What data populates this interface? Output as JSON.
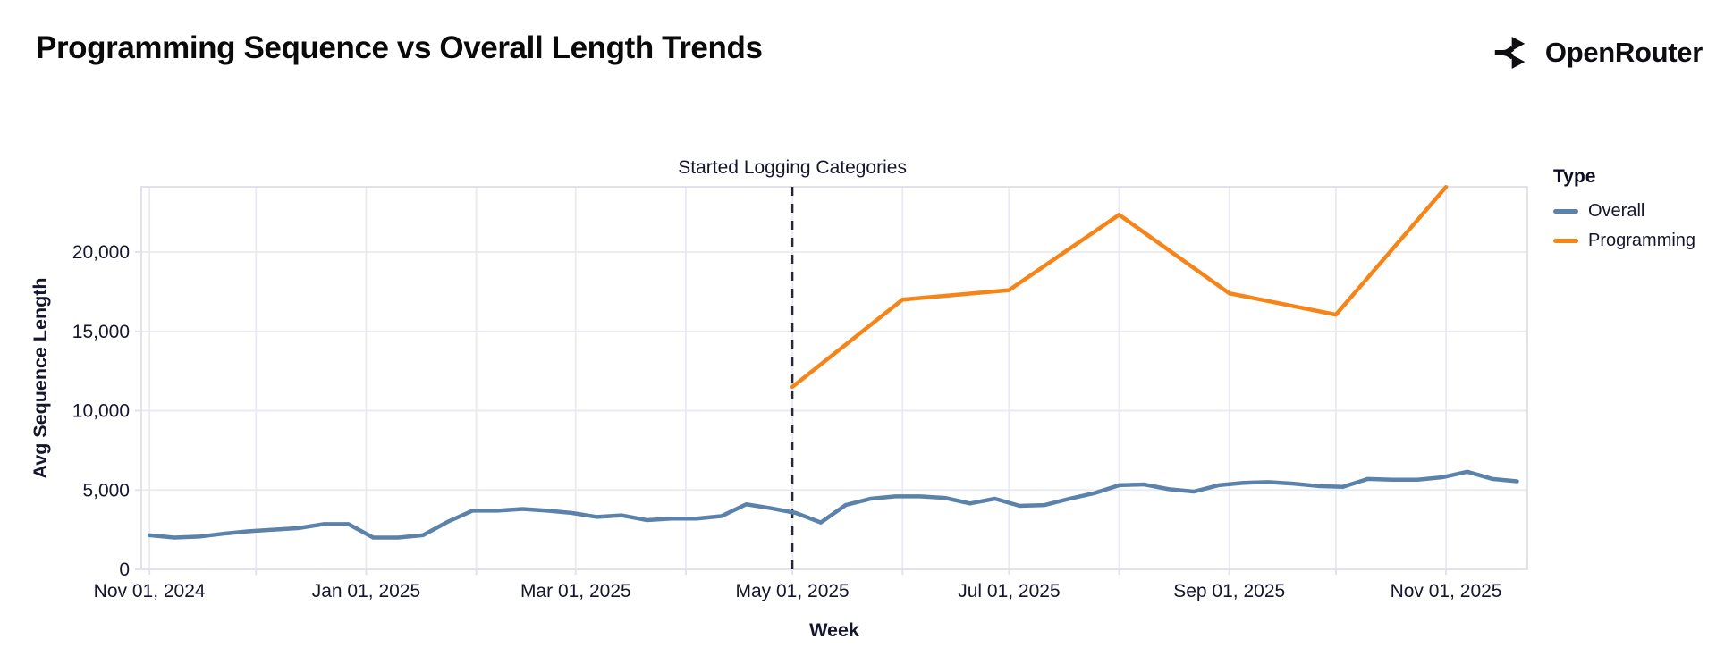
{
  "header": {
    "title": "Programming Sequence vs Overall Length Trends",
    "brand": "OpenRouter"
  },
  "colors": {
    "grid": "#e9e9f1",
    "border": "#e2e2ea",
    "axis_text": "#15152e",
    "annotation_line": "#27273a"
  },
  "chart_data": {
    "type": "line",
    "title": "Programming Sequence vs Overall Length Trends",
    "xlabel": "Week",
    "ylabel": "Avg Sequence Length",
    "x_unit": "days since Nov 01, 2024",
    "x_domain": [
      -2.3,
      387.9
    ],
    "ylim": [
      0,
      24113
    ],
    "grid": true,
    "legend": {
      "title": "Type",
      "position": "right"
    },
    "y_ticks": [
      {
        "value": 0,
        "label": "0"
      },
      {
        "value": 5000,
        "label": "5,000"
      },
      {
        "value": 10000,
        "label": "10,000"
      },
      {
        "value": 15000,
        "label": "15,000"
      },
      {
        "value": 20000,
        "label": "20,000"
      }
    ],
    "x_ticks": [
      {
        "day": 0,
        "label": "Nov 01, 2024"
      },
      {
        "day": 61,
        "label": "Jan 01, 2025"
      },
      {
        "day": 120,
        "label": "Mar 01, 2025"
      },
      {
        "day": 181,
        "label": "May 01, 2025"
      },
      {
        "day": 242,
        "label": "Jul 01, 2025"
      },
      {
        "day": 304,
        "label": "Sep 01, 2025"
      },
      {
        "day": 365,
        "label": "Nov 01, 2025"
      }
    ],
    "month_gridline_days": [
      0,
      30,
      61,
      92,
      120,
      151,
      181,
      212,
      242,
      273,
      304,
      334,
      365
    ],
    "annotation": {
      "label": "Started Logging Categories",
      "day": 181
    },
    "series": [
      {
        "name": "Overall",
        "color": "#5b82ab",
        "cadence": "weekly",
        "x_days": [
          0,
          7,
          14,
          21,
          28,
          35,
          42,
          49,
          56,
          63,
          70,
          77,
          84,
          91,
          98,
          105,
          112,
          119,
          126,
          133,
          140,
          147,
          154,
          161,
          168,
          175,
          182,
          189,
          196,
          203,
          210,
          217,
          224,
          231,
          238,
          245,
          252,
          259,
          266,
          273,
          280,
          287,
          294,
          301,
          308,
          315,
          322,
          329,
          336,
          343,
          350,
          357,
          364,
          371,
          378,
          385
        ],
        "values": [
          2150,
          2000,
          2060,
          2250,
          2400,
          2500,
          2600,
          2850,
          2850,
          2000,
          2000,
          2150,
          3000,
          3700,
          3700,
          3800,
          3700,
          3550,
          3300,
          3400,
          3100,
          3200,
          3200,
          3350,
          4100,
          3850,
          3550,
          2950,
          4050,
          4450,
          4600,
          4600,
          4500,
          4150,
          4450,
          4000,
          4050,
          4450,
          4800,
          5300,
          5350,
          5050,
          4900,
          5300,
          5450,
          5500,
          5400,
          5250,
          5200,
          5700,
          5650,
          5650,
          5800,
          6150,
          5700,
          5550
        ]
      },
      {
        "name": "Programming",
        "color": "#f58518",
        "cadence": "monthly",
        "x_days": [
          181,
          212,
          242,
          273,
          304,
          334,
          365
        ],
        "values": [
          11500,
          17000,
          17600,
          22350,
          17400,
          16050,
          24100
        ]
      }
    ]
  }
}
